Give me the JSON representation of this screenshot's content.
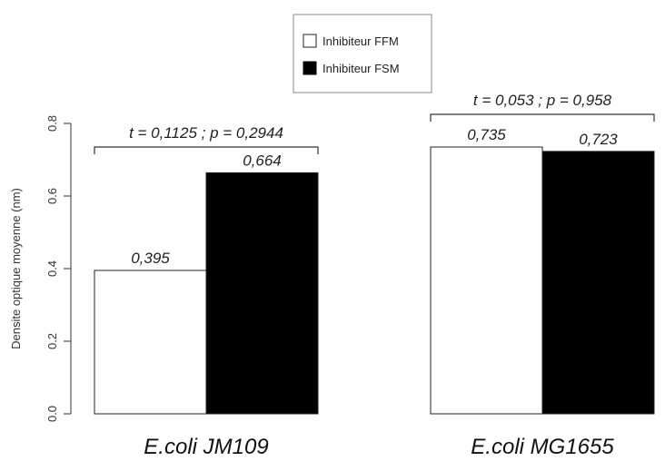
{
  "chart_data": {
    "type": "bar",
    "title": "",
    "xlabel": "",
    "ylabel": "Densite optique moyenne (nm)",
    "ylim": [
      0,
      0.8
    ],
    "yticks": [
      "0.0",
      "0.2",
      "0.4",
      "0.6",
      "0.8"
    ],
    "categories": [
      "E.coli JM109",
      "E.coli MG1655"
    ],
    "series": [
      {
        "name": "Inhibiteur FFM",
        "color": "#ffffff",
        "values": [
          0.395,
          0.735
        ],
        "labels": [
          "0,395",
          "0,735"
        ]
      },
      {
        "name": "Inhibiteur FSM",
        "color": "#000000",
        "values": [
          0.664,
          0.723
        ],
        "labels": [
          "0,664",
          "0,723"
        ]
      }
    ],
    "annotations": [
      "t = 0,1125 ; p = 0,2944",
      "t = 0,053 ; p = 0,958"
    ],
    "legend_position": "top-center",
    "grid": false
  }
}
